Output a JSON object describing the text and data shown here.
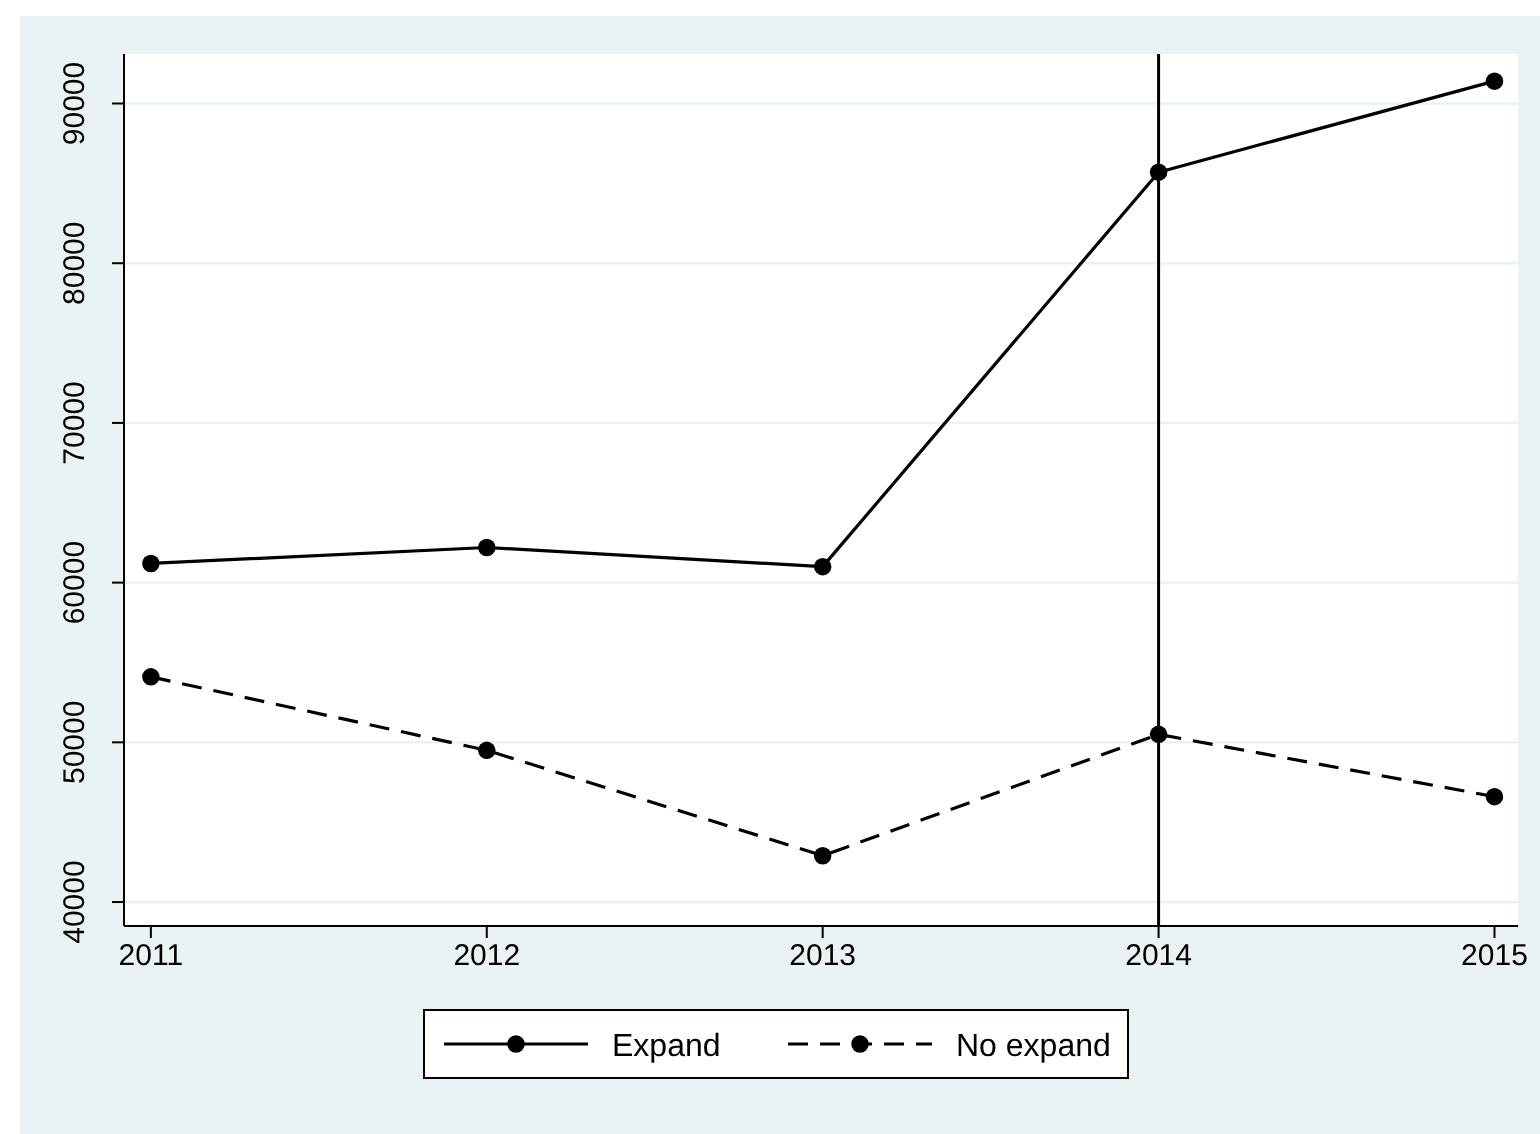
{
  "chart_data": {
    "type": "line",
    "x": [
      2011,
      2012,
      2013,
      2014,
      2015
    ],
    "series": [
      {
        "name": "Expand",
        "color": "#000000",
        "values": [
          61200,
          62200,
          61000,
          85700,
          91400
        ],
        "line_style": "solid"
      },
      {
        "name": "No expand",
        "color": "#000000",
        "values": [
          54100,
          49500,
          42900,
          50500,
          46600
        ],
        "line_style": "dashed"
      }
    ],
    "xlim": [
      2010.92,
      2015.07
    ],
    "xticks": [
      2011,
      2012,
      2013,
      2014,
      2015
    ],
    "ylim": [
      38500,
      93100
    ],
    "yticks": [
      40000,
      50000,
      60000,
      70000,
      80000,
      90000
    ],
    "ref_lines": [
      {
        "axis": "x",
        "value": 2014,
        "color": "#000000"
      }
    ],
    "grid": "y",
    "legend": "bottom",
    "marker": "circle"
  }
}
